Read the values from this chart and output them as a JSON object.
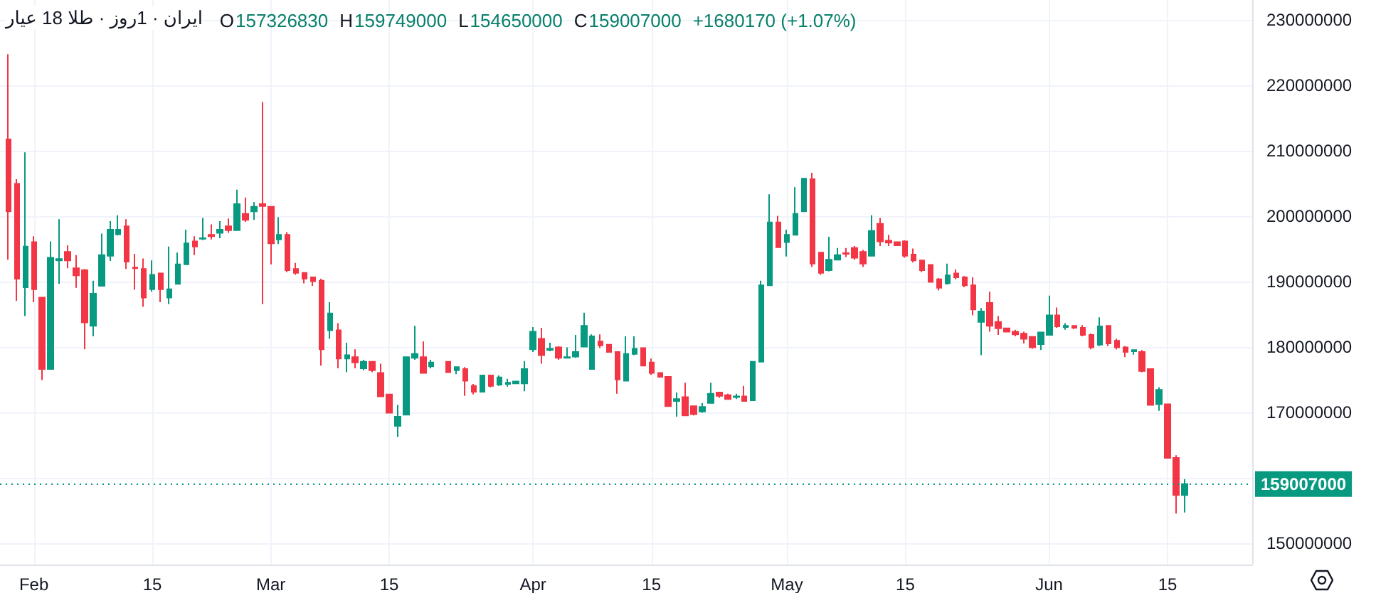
{
  "chart_data": {
    "type": "candlestick",
    "title": "ایران · 1روز · طلا 18 عیار",
    "annotations": [
      "O157326830",
      "H159749000",
      "L154650000",
      "C159007000",
      "+1680170 (+1.07%)"
    ],
    "x": [
      "--01-29",
      "--01-30",
      "--01-31",
      "--02-01",
      "--02-02",
      "--02-03",
      "--02-04",
      "--02-05",
      "--02-06",
      "--02-07",
      "--02-08",
      "--02-09",
      "--02-10",
      "--02-11",
      "--02-12",
      "--02-13",
      "--02-14",
      "--02-15",
      "--02-16",
      "--02-17",
      "--02-18",
      "--02-19",
      "--02-20",
      "--02-21",
      "--02-22",
      "--02-23",
      "--02-24",
      "--02-25",
      "--02-26",
      "--02-27",
      "--02-28",
      "--03-01",
      "--03-02",
      "--03-03",
      "--03-04",
      "--03-05",
      "--03-06",
      "--03-07",
      "--03-08",
      "--03-09",
      "--03-10",
      "--03-11",
      "--03-12",
      "--03-13",
      "--03-14",
      "--03-15",
      "--03-16",
      "--03-17",
      "--03-18",
      "--03-19",
      "--03-20",
      "--03-22",
      "--03-23",
      "--03-24",
      "--03-25",
      "--03-26",
      "--03-27",
      "--03-28",
      "--03-29",
      "--03-30",
      "--03-31",
      "--04-01",
      "--04-02",
      "--04-03",
      "--04-04",
      "--04-05",
      "--04-06",
      "--04-07",
      "--04-08",
      "--04-09",
      "--04-10",
      "--04-11",
      "--04-12",
      "--04-13",
      "--04-14",
      "--04-15",
      "--04-16",
      "--04-17",
      "--04-18",
      "--04-19",
      "--04-20",
      "--04-21",
      "--04-22",
      "--04-23",
      "--04-24",
      "--04-25",
      "--04-26",
      "--04-27",
      "--04-28",
      "--04-29",
      "--04-30",
      "--05-01",
      "--05-02",
      "--05-03",
      "--05-04",
      "--05-05",
      "--05-06",
      "--05-07",
      "--05-08",
      "--05-09",
      "--05-10",
      "--05-11",
      "--05-12",
      "--05-13",
      "--05-14",
      "--05-15",
      "--05-16",
      "--05-17",
      "--05-18",
      "--05-19",
      "--05-20",
      "--05-21",
      "--05-22",
      "--05-23",
      "--05-24",
      "--05-25",
      "--05-26",
      "--05-27",
      "--05-28",
      "--05-29",
      "--05-30",
      "--05-31",
      "--06-01",
      "--06-02",
      "--06-03",
      "--06-04",
      "--06-05",
      "--06-06",
      "--06-07",
      "--06-08",
      "--06-09",
      "--06-10",
      "--06-11",
      "--06-12",
      "--06-13",
      "--06-14",
      "--06-15",
      "--06-16",
      "--06-17"
    ],
    "ohlc": [
      [
        211700000,
        224700000,
        193300000,
        200700000
      ],
      [
        204900000,
        205600000,
        187000000,
        190400000
      ],
      [
        189100000,
        209700000,
        184700000,
        195300000
      ],
      [
        196000000,
        196900000,
        186800000,
        188800000
      ],
      [
        187500000,
        187500000,
        174900000,
        176600000
      ],
      [
        176600000,
        196100000,
        176600000,
        193600000
      ],
      [
        193200000,
        199500000,
        189600000,
        193400000
      ],
      [
        194500000,
        195500000,
        192000000,
        193200000
      ],
      [
        192000000,
        194000000,
        189000000,
        190900000
      ],
      [
        191700000,
        191900000,
        179600000,
        183700000
      ],
      [
        183200000,
        190100000,
        181600000,
        188100000
      ],
      [
        189300000,
        197300000,
        189300000,
        194000000
      ],
      [
        193900000,
        199200000,
        193100000,
        197900000
      ],
      [
        197200000,
        200100000,
        197000000,
        197900000
      ],
      [
        198400000,
        199500000,
        191900000,
        193000000
      ],
      [
        192100000,
        194200000,
        188700000,
        192000000
      ],
      [
        191900000,
        193500000,
        186100000,
        187500000
      ],
      [
        188800000,
        193200000,
        188400000,
        191000000
      ],
      [
        191200000,
        191200000,
        186800000,
        188800000
      ],
      [
        187500000,
        195300000,
        186500000,
        188800000
      ],
      [
        189600000,
        194400000,
        189600000,
        192600000
      ],
      [
        192600000,
        197900000,
        192600000,
        195800000
      ],
      [
        196100000,
        196900000,
        194000000,
        195300000
      ],
      [
        196500000,
        199700000,
        196300000,
        196600000
      ],
      [
        197100000,
        198700000,
        196400000,
        196900000
      ],
      [
        197400000,
        199200000,
        196600000,
        197900000
      ],
      [
        198400000,
        199600000,
        197400000,
        197800000
      ],
      [
        197800000,
        204000000,
        197800000,
        201800000
      ],
      [
        200300000,
        202800000,
        199100000,
        199400000
      ],
      [
        200700000,
        202100000,
        199400000,
        201400000
      ],
      [
        201800000,
        217400000,
        186500000,
        201500000
      ],
      [
        201400000,
        201400000,
        192600000,
        195800000
      ],
      [
        196400000,
        199800000,
        195700000,
        197100000
      ],
      [
        197100000,
        197500000,
        191400000,
        191700000
      ],
      [
        191900000,
        192800000,
        191000000,
        191300000
      ],
      [
        191300000,
        191300000,
        189700000,
        190400000
      ],
      [
        190600000,
        190600000,
        189300000,
        190000000
      ],
      [
        190100000,
        190400000,
        177100000,
        179600000
      ],
      [
        182500000,
        186800000,
        181200000,
        185100000
      ],
      [
        182500000,
        183600000,
        176700000,
        178200000
      ],
      [
        178200000,
        180600000,
        176100000,
        178700000
      ],
      [
        178400000,
        179600000,
        176700000,
        177600000
      ],
      [
        176700000,
        178000000,
        176400000,
        177700000
      ],
      [
        177700000,
        177700000,
        176100000,
        176400000
      ],
      [
        176000000,
        177400000,
        172400000,
        172400000
      ],
      [
        172700000,
        172800000,
        169900000,
        169900000
      ],
      [
        167900000,
        171100000,
        166200000,
        169300000
      ],
      [
        169600000,
        178400000,
        169600000,
        178400000
      ],
      [
        178300000,
        183200000,
        178000000,
        178900000
      ],
      [
        178400000,
        180800000,
        176000000,
        176000000
      ],
      [
        177000000,
        178000000,
        176700000,
        177600000
      ],
      [
        177700000,
        177700000,
        176000000,
        176100000
      ],
      [
        176400000,
        176900000,
        175800000,
        176900000
      ],
      [
        176600000,
        176900000,
        172500000,
        174800000
      ],
      [
        174000000,
        174300000,
        172700000,
        173100000
      ],
      [
        173100000,
        175600000,
        173100000,
        175600000
      ],
      [
        175600000,
        175600000,
        173800000,
        174000000
      ],
      [
        174200000,
        175600000,
        174000000,
        175300000
      ],
      [
        174300000,
        175100000,
        173900000,
        174500000
      ],
      [
        174400000,
        174800000,
        174300000,
        174700000
      ],
      [
        174400000,
        177800000,
        173200000,
        176600000
      ],
      [
        179600000,
        183000000,
        179200000,
        182300000
      ],
      [
        181200000,
        182900000,
        177400000,
        178700000
      ],
      [
        179500000,
        180600000,
        179300000,
        179700000
      ],
      [
        179900000,
        180100000,
        178000000,
        178300000
      ],
      [
        178300000,
        179900000,
        178300000,
        178400000
      ],
      [
        178500000,
        181800000,
        178300000,
        179200000
      ],
      [
        180000000,
        185200000,
        179900000,
        183200000
      ],
      [
        176600000,
        181900000,
        176600000,
        181600000
      ],
      [
        180800000,
        181900000,
        179800000,
        180200000
      ],
      [
        180300000,
        180300000,
        179200000,
        179200000
      ],
      [
        179200000,
        179300000,
        172800000,
        175000000
      ],
      [
        174800000,
        181600000,
        174800000,
        178900000
      ],
      [
        178900000,
        181600000,
        178700000,
        179700000
      ],
      [
        179800000,
        179800000,
        177100000,
        177100000
      ],
      [
        177600000,
        178200000,
        175700000,
        176000000
      ],
      [
        176000000,
        176100000,
        175300000,
        175400000
      ],
      [
        175400000,
        175400000,
        170900000,
        170900000
      ],
      [
        171700000,
        173000000,
        169300000,
        172000000
      ],
      [
        172300000,
        174500000,
        169500000,
        169500000
      ],
      [
        170900000,
        171000000,
        169500000,
        169700000
      ],
      [
        170100000,
        171400000,
        169900000,
        170800000
      ],
      [
        171400000,
        174500000,
        171400000,
        172800000
      ],
      [
        173000000,
        173100000,
        172200000,
        172500000
      ],
      [
        172600000,
        172800000,
        171900000,
        172000000
      ],
      [
        172300000,
        172800000,
        172000000,
        172400000
      ],
      [
        172400000,
        174000000,
        171600000,
        171700000
      ],
      [
        171800000,
        177700000,
        171700000,
        177700000
      ],
      [
        177700000,
        190100000,
        177700000,
        189400000
      ],
      [
        189400000,
        203300000,
        189300000,
        199000000
      ],
      [
        199000000,
        200000000,
        195200000,
        195200000
      ],
      [
        196000000,
        197900000,
        193800000,
        197100000
      ],
      [
        197100000,
        204400000,
        197100000,
        200300000
      ],
      [
        200700000,
        205800000,
        200700000,
        205700000
      ],
      [
        205600000,
        206600000,
        192200000,
        192700000
      ],
      [
        194400000,
        194400000,
        191000000,
        191300000
      ],
      [
        191700000,
        196800000,
        191500000,
        193300000
      ],
      [
        193300000,
        195100000,
        193300000,
        194000000
      ],
      [
        194300000,
        195100000,
        193700000,
        194200000
      ],
      [
        195100000,
        195400000,
        193300000,
        193600000
      ],
      [
        194500000,
        194800000,
        192200000,
        192700000
      ],
      [
        193900000,
        200100000,
        193900000,
        197700000
      ],
      [
        198800000,
        199700000,
        195400000,
        196100000
      ],
      [
        196200000,
        197100000,
        195400000,
        195900000
      ],
      [
        196000000,
        196100000,
        195400000,
        195500000
      ],
      [
        196100000,
        196300000,
        193600000,
        193900000
      ],
      [
        194100000,
        195000000,
        192900000,
        193200000
      ],
      [
        193200000,
        193200000,
        191400000,
        191700000
      ],
      [
        192500000,
        192600000,
        189800000,
        189900000
      ],
      [
        190300000,
        190500000,
        188600000,
        189000000
      ],
      [
        189700000,
        192700000,
        189500000,
        190900000
      ],
      [
        191200000,
        191800000,
        190300000,
        190600000
      ],
      [
        190600000,
        190800000,
        189100000,
        189400000
      ],
      [
        189400000,
        190600000,
        184800000,
        185700000
      ],
      [
        183800000,
        185900000,
        178700000,
        185400000
      ],
      [
        186700000,
        188400000,
        182300000,
        183200000
      ],
      [
        183800000,
        184700000,
        181800000,
        182800000
      ],
      [
        182800000,
        182900000,
        182200000,
        182300000
      ],
      [
        182300000,
        182600000,
        181600000,
        181900000
      ],
      [
        182000000,
        182300000,
        180500000,
        181200000
      ],
      [
        181500000,
        181500000,
        179700000,
        179900000
      ],
      [
        180400000,
        182300000,
        179500000,
        182200000
      ],
      [
        181800000,
        187800000,
        181800000,
        184800000
      ],
      [
        184800000,
        186000000,
        182900000,
        183100000
      ],
      [
        183000000,
        183600000,
        182600000,
        183200000
      ],
      [
        183200000,
        183300000,
        182700000,
        182900000
      ],
      [
        182900000,
        183300000,
        181600000,
        181800000
      ],
      [
        181800000,
        182000000,
        179600000,
        179900000
      ],
      [
        180300000,
        184500000,
        180100000,
        183100000
      ],
      [
        183200000,
        183200000,
        180100000,
        180500000
      ],
      [
        180900000,
        181200000,
        179600000,
        179900000
      ],
      [
        179900000,
        180100000,
        178400000,
        179200000
      ],
      [
        179300000,
        179600000,
        178800000,
        179500000
      ],
      [
        179200000,
        179500000,
        176100000,
        176300000
      ],
      [
        176600000,
        176700000,
        171100000,
        171100000
      ],
      [
        171200000,
        173800000,
        170200000,
        173400000
      ],
      [
        171200000,
        171200000,
        163000000,
        163000000
      ],
      [
        163000000,
        163400000,
        154500000,
        157326830
      ],
      [
        157326830,
        159749000,
        154650000,
        159007000
      ]
    ],
    "colors": [
      "#f23645",
      "#f23645",
      "#089981",
      "#f23645",
      "#f23645",
      "#089981",
      "#089981",
      "#f23645",
      "#f23645",
      "#f23645",
      "#089981",
      "#089981",
      "#089981",
      "#089981",
      "#f23645",
      "#f23645",
      "#f23645",
      "#089981",
      "#f23645",
      "#089981",
      "#089981",
      "#089981",
      "#f23645",
      "#089981",
      "#f23645",
      "#089981",
      "#f23645",
      "#089981",
      "#f23645",
      "#089981",
      "#f23645",
      "#f23645",
      "#089981",
      "#f23645",
      "#f23645",
      "#f23645",
      "#f23645",
      "#f23645",
      "#089981",
      "#f23645",
      "#089981",
      "#f23645",
      "#089981",
      "#f23645",
      "#f23645",
      "#f23645",
      "#089981",
      "#089981",
      "#089981",
      "#f23645",
      "#089981",
      "#f23645",
      "#089981",
      "#f23645",
      "#f23645",
      "#089981",
      "#f23645",
      "#089981",
      "#089981",
      "#089981",
      "#089981",
      "#089981",
      "#f23645",
      "#089981",
      "#f23645",
      "#089981",
      "#089981",
      "#089981",
      "#089981",
      "#f23645",
      "#f23645",
      "#f23645",
      "#089981",
      "#089981",
      "#f23645",
      "#f23645",
      "#f23645",
      "#f23645",
      "#089981",
      "#f23645",
      "#f23645",
      "#089981",
      "#089981",
      "#f23645",
      "#f23645",
      "#089981",
      "#f23645",
      "#089981",
      "#089981",
      "#089981",
      "#f23645",
      "#089981",
      "#089981",
      "#089981",
      "#f23645",
      "#f23645",
      "#089981",
      "#089981",
      "#f23645",
      "#f23645",
      "#f23645",
      "#089981",
      "#f23645",
      "#f23645",
      "#f23645",
      "#f23645",
      "#f23645",
      "#f23645",
      "#f23645",
      "#f23645",
      "#089981",
      "#f23645",
      "#f23645",
      "#f23645",
      "#089981",
      "#f23645",
      "#f23645",
      "#f23645",
      "#f23645",
      "#f23645",
      "#f23645",
      "#089981",
      "#089981",
      "#f23645",
      "#089981",
      "#f23645",
      "#f23645",
      "#f23645",
      "#089981",
      "#f23645",
      "#f23645",
      "#f23645",
      "#089981",
      "#f23645",
      "#f23645",
      "#089981",
      "#f23645",
      "#f23645",
      "#089981"
    ],
    "xlim": [
      "--01-28",
      "--06-25"
    ],
    "xticks": [
      {
        "value": "--02-01",
        "label": "Feb"
      },
      {
        "value": "--02-15",
        "label": "15"
      },
      {
        "value": "--03-01",
        "label": "Mar"
      },
      {
        "value": "--03-15",
        "label": "15"
      },
      {
        "value": "--04-01",
        "label": "Apr"
      },
      {
        "value": "--04-15",
        "label": "15"
      },
      {
        "value": "--05-01",
        "label": "May"
      },
      {
        "value": "--05-15",
        "label": "15"
      },
      {
        "value": "--06-01",
        "label": "Jun"
      },
      {
        "value": "--06-15",
        "label": "15"
      }
    ],
    "ylim": [
      146700000,
      233000000
    ],
    "yticks": [
      150000000,
      {
        "value": 160000000,
        "label": null
      },
      170000000,
      180000000,
      190000000,
      200000000,
      210000000,
      220000000,
      230000000
    ],
    "ref_lines": [
      {
        "axis": "y",
        "value": 159007000,
        "label": "159007000",
        "color": "#089981",
        "line_style": "dotted"
      }
    ],
    "grid": true
  }
}
